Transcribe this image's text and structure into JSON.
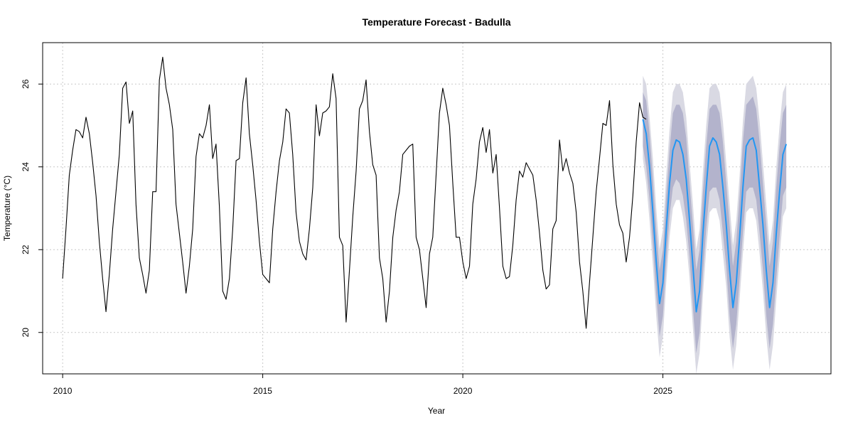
{
  "chart_data": {
    "type": "line",
    "title": "Temperature Forecast - Badulla",
    "xlabel": "Year",
    "ylabel": "Temperature (°C)",
    "xlim": [
      2009.5,
      2029.2
    ],
    "ylim": [
      19.0,
      27.0
    ],
    "x_ticks": [
      2010,
      2015,
      2020,
      2025
    ],
    "y_ticks": [
      20,
      22,
      24,
      26
    ],
    "grid": true,
    "colors": {
      "history": "#000000",
      "forecast": "#2196F3",
      "band_95": "#d9d9e3",
      "band_80": "#b3b3cc"
    },
    "series": [
      {
        "kind": "history",
        "x_start": 2010.0,
        "step": 0.08333,
        "values": [
          21.3,
          22.5,
          23.8,
          24.4,
          24.9,
          24.85,
          24.7,
          25.2,
          24.8,
          24.1,
          23.3,
          22.2,
          21.3,
          20.5,
          21.4,
          22.5,
          23.4,
          24.3,
          25.9,
          26.05,
          25.05,
          25.35,
          23.1,
          21.8,
          21.4,
          20.95,
          21.5,
          23.4,
          23.4,
          26.1,
          26.65,
          25.9,
          25.5,
          24.9,
          23.1,
          22.4,
          21.7,
          20.95,
          21.6,
          22.5,
          24.25,
          24.8,
          24.7,
          25.0,
          25.5,
          24.2,
          24.55,
          23.05,
          21.0,
          20.8,
          21.3,
          22.5,
          24.15,
          24.2,
          25.55,
          26.15,
          24.8,
          24.05,
          23.2,
          22.2,
          21.4,
          21.3,
          21.2,
          22.5,
          23.4,
          24.15,
          24.6,
          25.4,
          25.3,
          24.3,
          22.9,
          22.2,
          21.9,
          21.75,
          22.5,
          23.5,
          25.5,
          24.75,
          25.3,
          25.35,
          25.45,
          26.25,
          25.65,
          22.3,
          22.1,
          20.25,
          21.5,
          22.8,
          23.9,
          25.4,
          25.6,
          26.1,
          24.85,
          24.05,
          23.8,
          21.8,
          21.3,
          20.25,
          21.0,
          22.3,
          22.95,
          23.4,
          24.3,
          24.4,
          24.5,
          24.55,
          22.3,
          22.0,
          21.3,
          20.6,
          21.9,
          22.3,
          23.8,
          25.3,
          25.9,
          25.5,
          25.0,
          23.6,
          22.3,
          22.3,
          21.7,
          21.3,
          21.6,
          23.1,
          23.7,
          24.6,
          24.95,
          24.35,
          24.9,
          23.85,
          24.3,
          23.0,
          21.6,
          21.3,
          21.35,
          22.1,
          23.2,
          23.9,
          23.75,
          24.1,
          23.95,
          23.8,
          23.2,
          22.4,
          21.5,
          21.05,
          21.15,
          22.5,
          22.7,
          24.65,
          23.9,
          24.2,
          23.85,
          23.6,
          22.9,
          21.7,
          21.0,
          20.1,
          21.2,
          22.3,
          23.4,
          24.2,
          25.05,
          25.0,
          25.6,
          24.05,
          23.1,
          22.6,
          22.4,
          21.7,
          22.3,
          23.3,
          24.6,
          25.55,
          25.2,
          25.15
        ]
      },
      {
        "kind": "forecast",
        "x_start": 2024.5,
        "step": 0.08333,
        "values": [
          25.15,
          24.8,
          24.0,
          22.9,
          21.7,
          20.7,
          21.2,
          22.5,
          23.6,
          24.4,
          24.65,
          24.6,
          24.3,
          23.7,
          22.7,
          21.6,
          20.5,
          21.0,
          22.4,
          23.5,
          24.5,
          24.7,
          24.6,
          24.3,
          23.5,
          22.6,
          21.5,
          20.6,
          21.2,
          22.3,
          23.5,
          24.5,
          24.65,
          24.7,
          24.4,
          23.5,
          22.6,
          21.5,
          20.6,
          21.2,
          22.4,
          23.4,
          24.3,
          24.55
        ],
        "lower_80": [
          24.5,
          24.0,
          23.2,
          22.1,
          20.9,
          19.9,
          20.4,
          21.7,
          22.8,
          23.5,
          23.7,
          23.6,
          23.3,
          22.7,
          21.8,
          20.6,
          19.5,
          20.0,
          21.4,
          22.5,
          23.4,
          23.5,
          23.5,
          23.2,
          22.4,
          21.6,
          20.4,
          19.6,
          20.2,
          21.3,
          22.4,
          23.4,
          23.5,
          23.5,
          23.2,
          22.4,
          21.5,
          20.4,
          19.6,
          20.2,
          21.3,
          22.3,
          23.3,
          23.5
        ],
        "upper_80": [
          25.8,
          25.6,
          24.8,
          23.7,
          22.5,
          21.5,
          22.0,
          23.3,
          24.4,
          25.3,
          25.5,
          25.5,
          25.3,
          24.7,
          23.6,
          22.6,
          21.5,
          22.0,
          23.4,
          24.5,
          25.4,
          25.5,
          25.5,
          25.3,
          24.6,
          23.6,
          22.6,
          21.6,
          22.2,
          23.3,
          24.6,
          25.5,
          25.6,
          25.7,
          25.4,
          24.6,
          23.6,
          22.6,
          21.6,
          22.2,
          23.5,
          24.5,
          25.3,
          25.5
        ],
        "lower_95": [
          24.2,
          23.6,
          22.7,
          21.6,
          20.4,
          19.4,
          19.9,
          21.2,
          22.3,
          23.0,
          23.2,
          23.2,
          22.8,
          22.2,
          21.3,
          20.1,
          19.0,
          19.5,
          20.9,
          22.0,
          22.9,
          23.0,
          23.0,
          22.7,
          21.9,
          21.1,
          19.9,
          19.1,
          19.7,
          20.8,
          21.9,
          22.9,
          23.0,
          23.0,
          22.7,
          21.9,
          21.0,
          19.9,
          19.1,
          19.7,
          20.8,
          21.8,
          22.8,
          23.0
        ],
        "upper_95": [
          26.2,
          26.0,
          25.2,
          24.2,
          23.0,
          22.0,
          22.5,
          23.8,
          24.9,
          25.8,
          26.0,
          26.0,
          25.8,
          25.2,
          24.1,
          23.1,
          22.0,
          22.5,
          23.9,
          25.0,
          25.9,
          26.0,
          26.0,
          25.8,
          25.1,
          24.1,
          23.1,
          22.1,
          22.7,
          23.8,
          25.1,
          26.0,
          26.1,
          26.2,
          25.9,
          25.1,
          24.1,
          23.1,
          22.1,
          22.7,
          24.0,
          25.0,
          25.8,
          26.0
        ]
      }
    ]
  }
}
